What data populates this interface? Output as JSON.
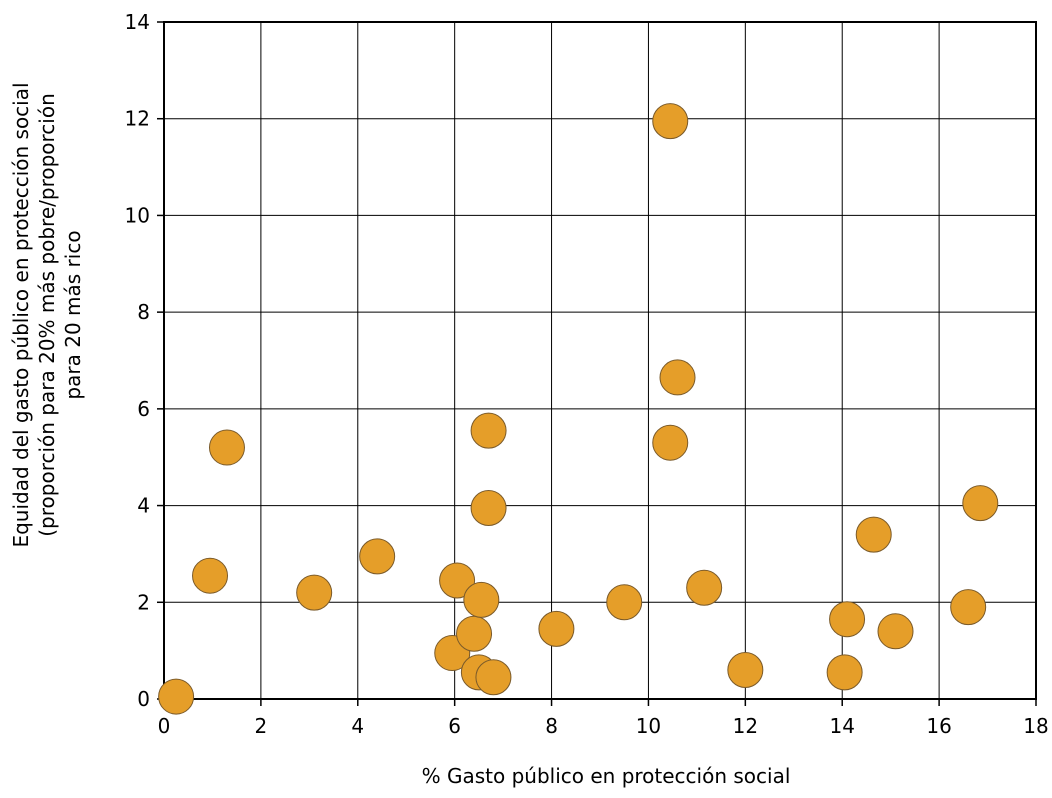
{
  "chart_data": {
    "type": "scatter",
    "xlabel": "% Gasto público en protección social",
    "ylabel_lines": [
      "Equidad del gasto público en protección social",
      "(proporción para 20% más pobre/proporción",
      "para 20 más rico"
    ],
    "xlim": [
      0,
      18
    ],
    "ylim": [
      0,
      14
    ],
    "x_ticks": [
      0,
      2,
      4,
      6,
      8,
      10,
      12,
      14,
      16,
      18
    ],
    "y_ticks": [
      0,
      2,
      4,
      6,
      8,
      10,
      12,
      14
    ],
    "grid": true,
    "marker_color": "#E59E29",
    "marker_edge_color": "#7a5a2a",
    "points": [
      {
        "x": 0.25,
        "y": 0.05
      },
      {
        "x": 0.95,
        "y": 2.55
      },
      {
        "x": 1.3,
        "y": 5.2
      },
      {
        "x": 3.1,
        "y": 2.2
      },
      {
        "x": 4.4,
        "y": 2.95
      },
      {
        "x": 5.95,
        "y": 0.95
      },
      {
        "x": 6.05,
        "y": 2.45
      },
      {
        "x": 6.4,
        "y": 1.35
      },
      {
        "x": 6.5,
        "y": 0.55
      },
      {
        "x": 6.55,
        "y": 2.05
      },
      {
        "x": 6.7,
        "y": 5.55
      },
      {
        "x": 6.7,
        "y": 3.95
      },
      {
        "x": 6.8,
        "y": 0.45
      },
      {
        "x": 8.1,
        "y": 1.45
      },
      {
        "x": 9.5,
        "y": 2.0
      },
      {
        "x": 10.45,
        "y": 11.95
      },
      {
        "x": 10.45,
        "y": 5.3
      },
      {
        "x": 10.6,
        "y": 6.65
      },
      {
        "x": 11.15,
        "y": 2.3
      },
      {
        "x": 12.0,
        "y": 0.6
      },
      {
        "x": 14.05,
        "y": 0.55
      },
      {
        "x": 14.1,
        "y": 1.65
      },
      {
        "x": 14.65,
        "y": 3.4
      },
      {
        "x": 15.1,
        "y": 1.4
      },
      {
        "x": 16.6,
        "y": 1.9
      },
      {
        "x": 16.85,
        "y": 4.05
      }
    ]
  }
}
